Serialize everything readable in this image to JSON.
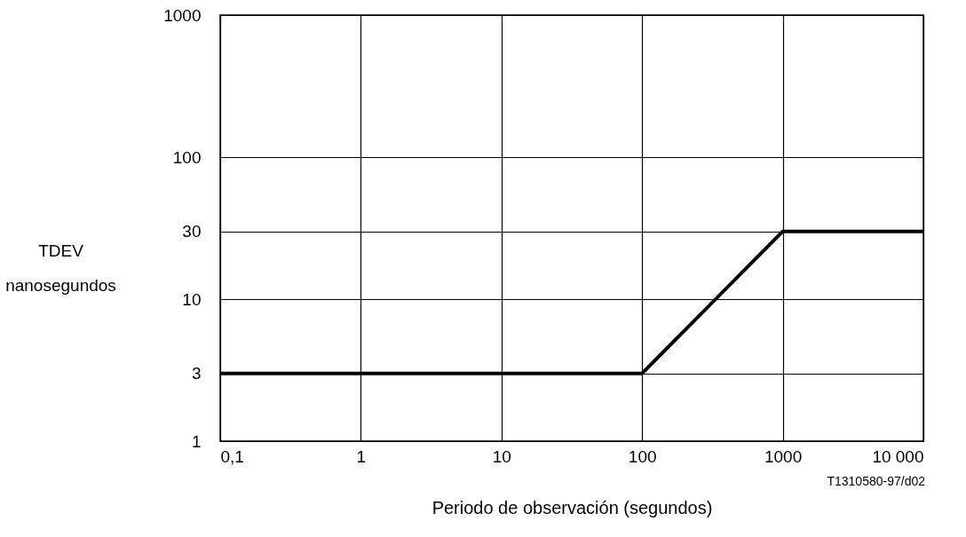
{
  "chart_data": {
    "type": "line",
    "xlabel": "Periodo de observación (segundos)",
    "ylabel": "TDEV\nnanosegundos",
    "annotations": [
      "T1310580-97/d02"
    ],
    "x": [
      0.1,
      100,
      1000,
      10000
    ],
    "series": [
      {
        "color": "#000000",
        "values": [
          3,
          3,
          30,
          30
        ]
      }
    ],
    "log": "xy",
    "xlim": [
      0.1,
      10000
    ],
    "ylim": [
      1,
      1000
    ],
    "xticks": [
      {
        "value": 0.1,
        "label": "0,1"
      },
      1,
      10,
      100,
      1000,
      {
        "value": 10000,
        "label": "10 000"
      }
    ],
    "yticks": [
      1,
      3,
      10,
      30,
      100,
      1000
    ],
    "grid": true,
    "marker": "none",
    "line_style": "solid"
  }
}
